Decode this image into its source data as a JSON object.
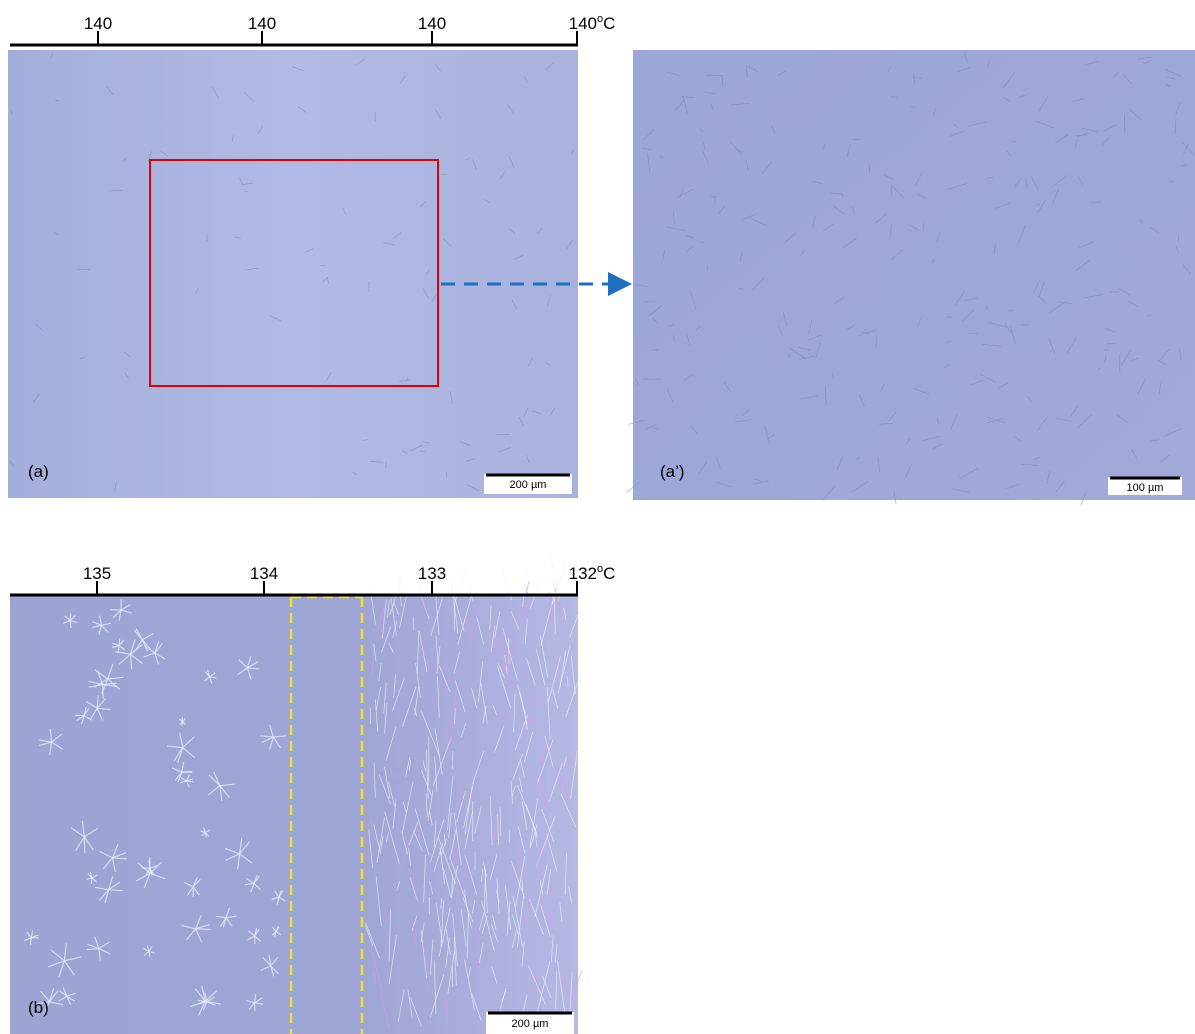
{
  "panels": [
    {
      "label": "(a)",
      "scale_bar": "200 µm",
      "temperature_axis": {
        "ticks": [
          "140",
          "140",
          "140",
          "140"
        ],
        "unit_sup": "o",
        "unit": "C"
      }
    },
    {
      "label": "(a’)",
      "scale_bar": "100 µm"
    },
    {
      "label": "(b)",
      "scale_bar": "200 µm",
      "temperature_axis": {
        "ticks": [
          "135",
          "134",
          "133",
          "132"
        ],
        "unit_sup": "o",
        "unit": "C"
      }
    }
  ]
}
